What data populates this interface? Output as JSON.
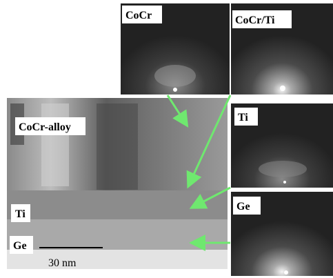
{
  "tem_image": {
    "labels": [
      "CoCr-alloy",
      "Ti",
      "Ge"
    ],
    "scale_bar": "30 nm"
  },
  "diffraction_panels": [
    {
      "label": "CoCr"
    },
    {
      "label": "CoCr/Ti"
    },
    {
      "label": "Ti"
    },
    {
      "label": "Ge"
    }
  ]
}
